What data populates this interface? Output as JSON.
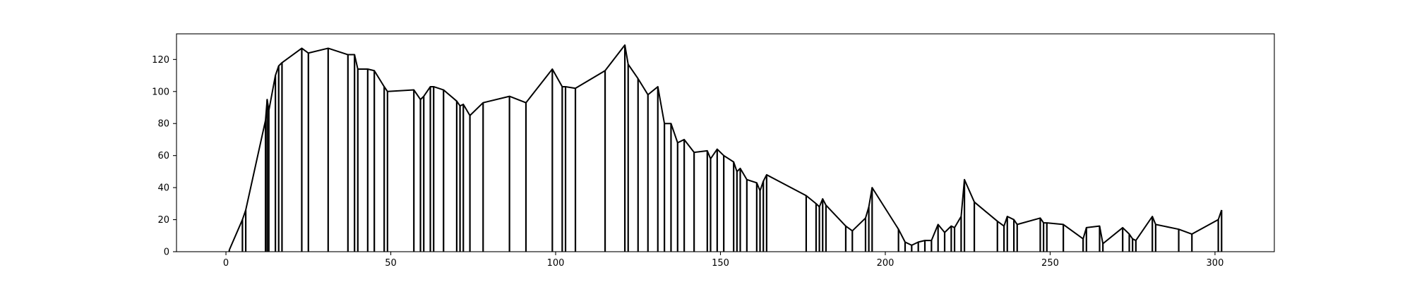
{
  "chart_data": {
    "type": "line",
    "title": "",
    "xlabel": "",
    "ylabel": "",
    "xlim": [
      -15,
      318
    ],
    "ylim": [
      0,
      136
    ],
    "grid": false,
    "legend": "none",
    "x_ticks": [
      0,
      50,
      100,
      150,
      200,
      250,
      300
    ],
    "x_tick_labels": [
      "0",
      "50",
      "100",
      "150",
      "200",
      "250",
      "300"
    ],
    "y_ticks": [
      0,
      20,
      40,
      60,
      80,
      100,
      120
    ],
    "y_tick_labels": [
      "0",
      "20",
      "40",
      "60",
      "80",
      "100",
      "120"
    ],
    "series": [
      {
        "color": "#000000",
        "style": "stems-with-envelope",
        "x": [
          1,
          5,
          6,
          12,
          12.5,
          13,
          15,
          16,
          17,
          23,
          25,
          31,
          37,
          39,
          40,
          43,
          45,
          48,
          49,
          57,
          59,
          60,
          62,
          63,
          66,
          70,
          71,
          72,
          74,
          78,
          86,
          91,
          99,
          102,
          103,
          106,
          115,
          121,
          122,
          125,
          128,
          131,
          133,
          135,
          137,
          139,
          142,
          146,
          147,
          149,
          151,
          154,
          155,
          156,
          158,
          161,
          162,
          163,
          164,
          176,
          179,
          180,
          181,
          182,
          188,
          190,
          194,
          195,
          196,
          204,
          206,
          208,
          210,
          212,
          214,
          216,
          218,
          220,
          221,
          223,
          224,
          227,
          234,
          236,
          237,
          239,
          240,
          247,
          248,
          249,
          254,
          260,
          261,
          265,
          266,
          272,
          274,
          275,
          276,
          281,
          282,
          289,
          293,
          301,
          302
        ],
        "y": [
          1,
          20,
          26,
          82,
          95,
          88,
          110,
          116,
          118,
          127,
          124,
          127,
          123,
          123,
          114,
          114,
          113,
          103,
          100,
          101,
          95,
          97,
          103,
          103,
          101,
          94,
          91,
          92,
          85,
          93,
          97,
          93,
          114,
          103,
          103,
          102,
          113,
          129,
          117,
          108,
          98,
          103,
          80,
          80,
          68,
          70,
          62,
          63,
          58,
          64,
          60,
          56,
          50,
          52,
          45,
          43,
          38,
          44,
          48,
          35,
          30,
          28,
          33,
          29,
          16,
          13,
          21,
          28,
          40,
          14,
          6,
          4,
          6,
          7,
          7,
          17,
          12,
          16,
          15,
          22,
          45,
          31,
          19,
          16,
          22,
          20,
          17,
          21,
          18,
          18,
          17,
          8,
          15,
          16,
          5,
          15,
          11,
          8,
          7,
          22,
          17,
          14,
          11,
          20,
          26
        ]
      }
    ]
  }
}
